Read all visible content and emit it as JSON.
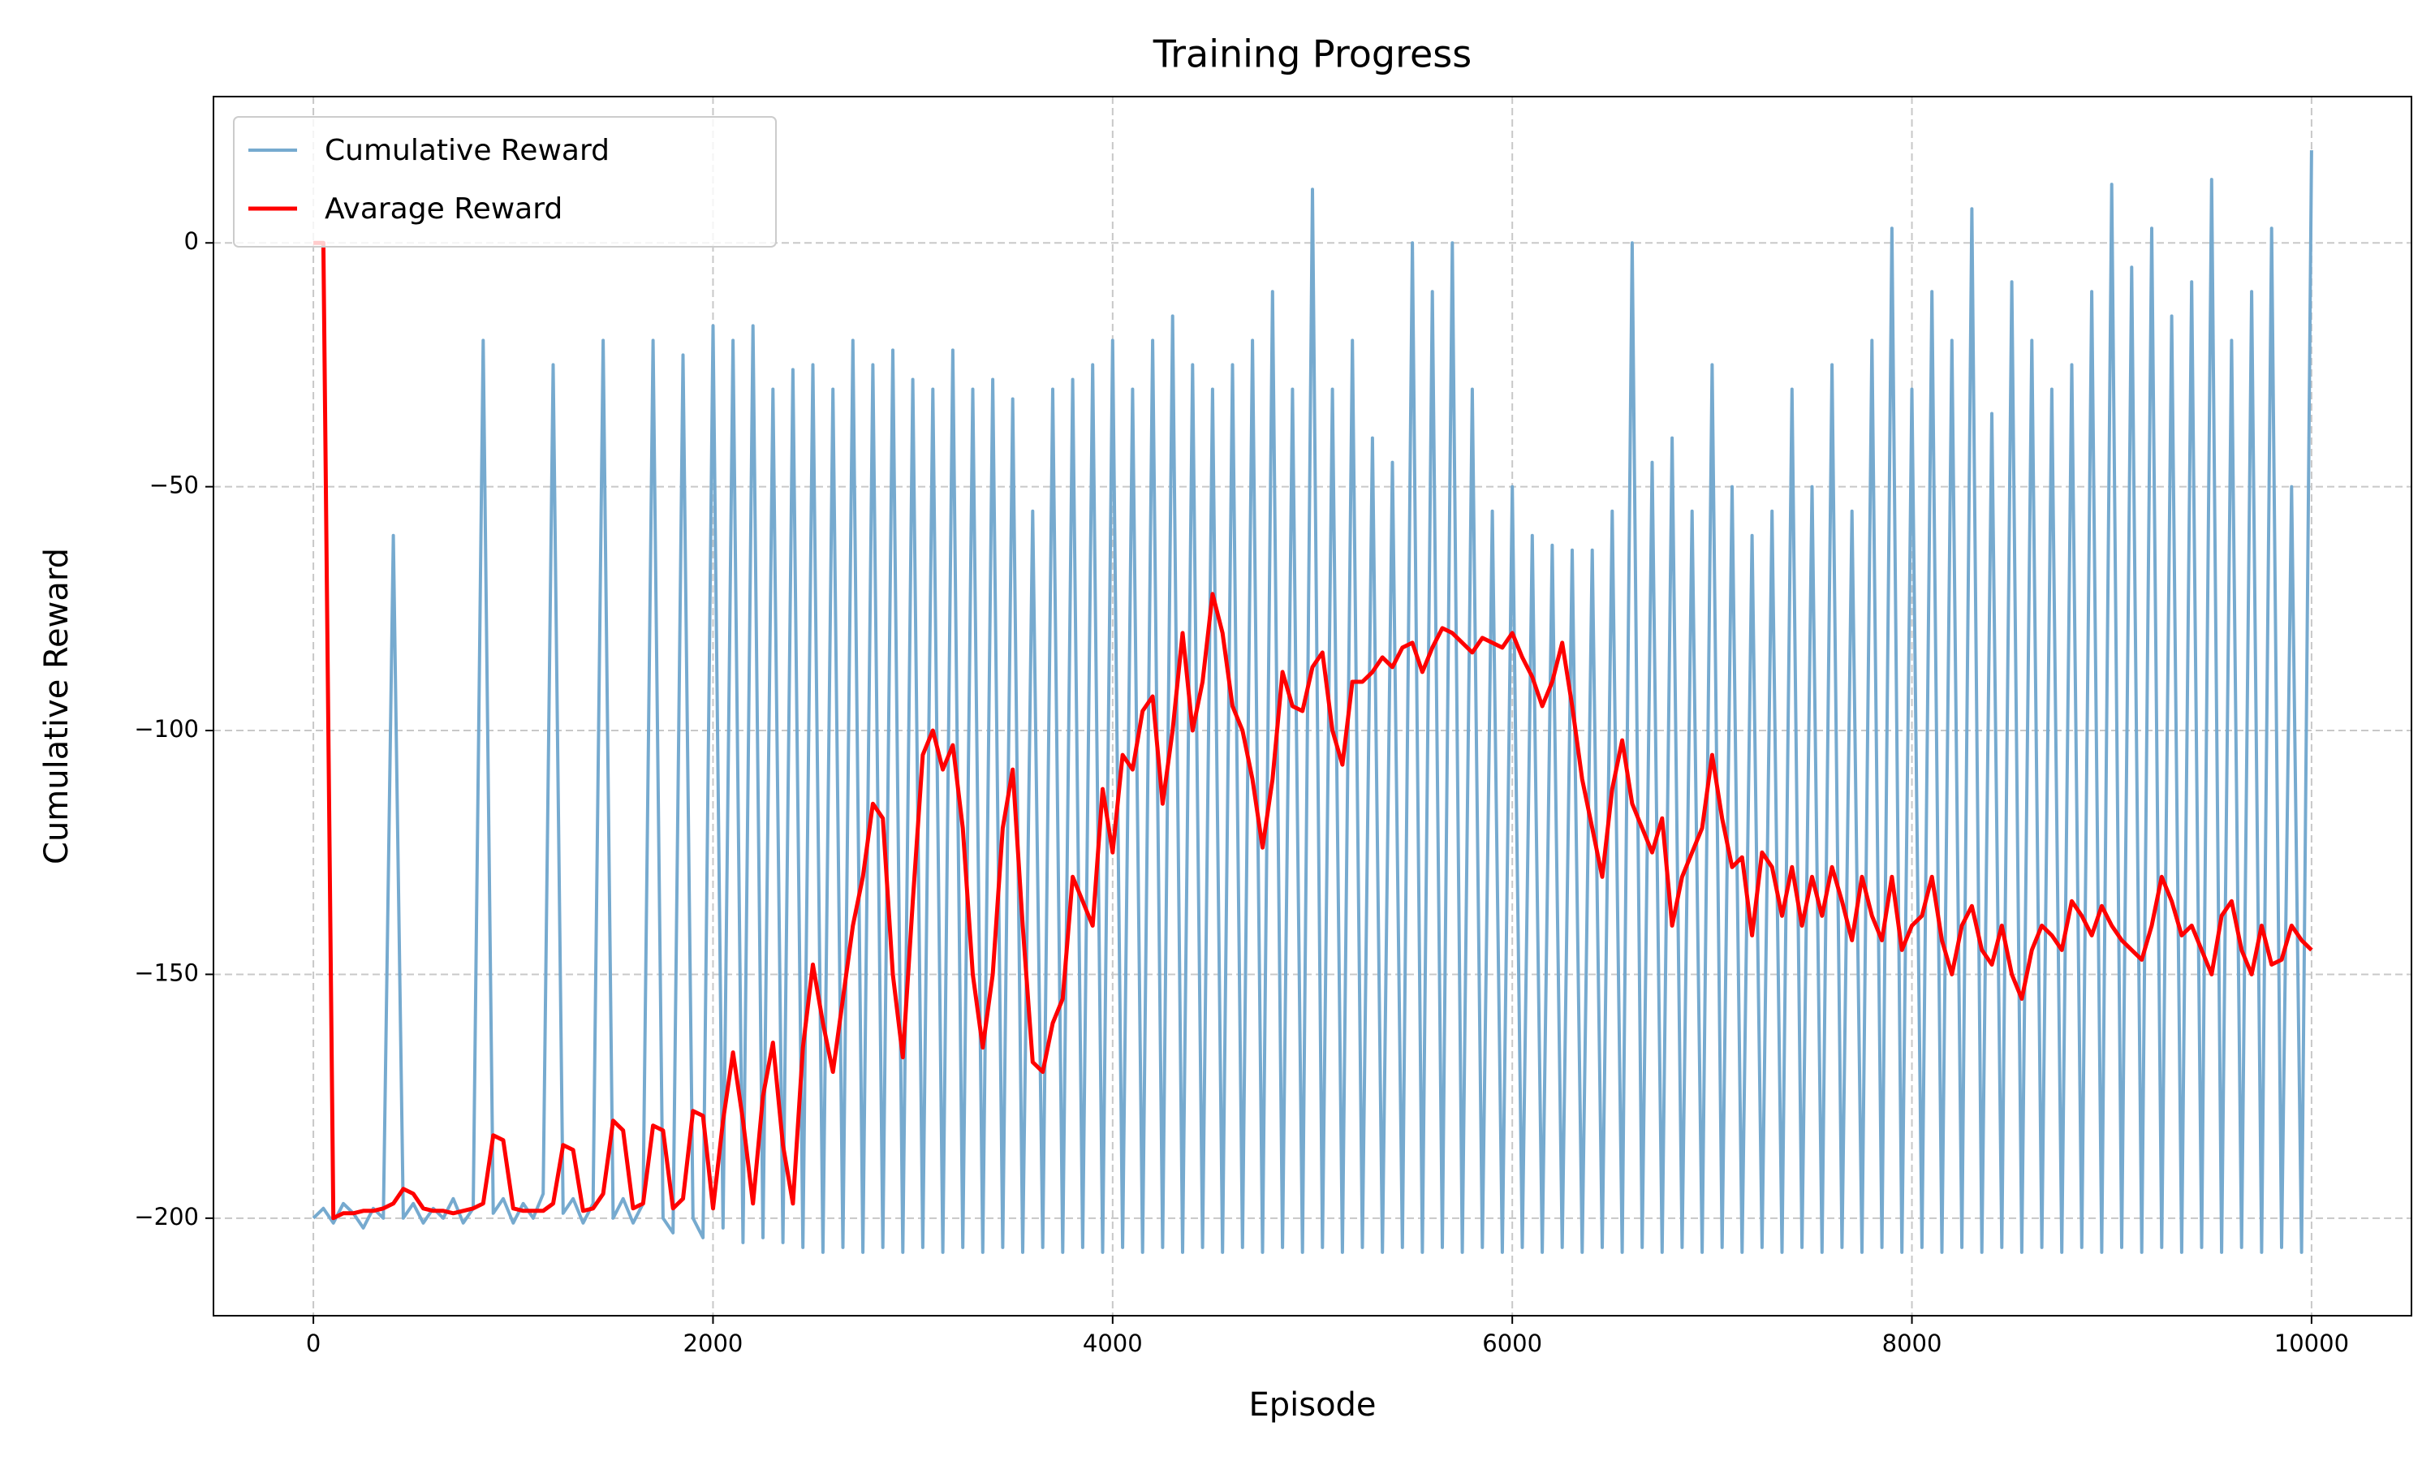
{
  "chart_data": {
    "type": "line",
    "title": "Training Progress",
    "x_label": "Episode",
    "y_label": "Cumulative Reward",
    "x": [
      0,
      50,
      100,
      150,
      200,
      250,
      300,
      350,
      400,
      450,
      500,
      550,
      600,
      650,
      700,
      750,
      800,
      850,
      900,
      950,
      1000,
      1050,
      1100,
      1150,
      1200,
      1250,
      1300,
      1350,
      1400,
      1450,
      1500,
      1550,
      1600,
      1650,
      1700,
      1750,
      1800,
      1850,
      1900,
      1950,
      2000,
      2050,
      2100,
      2150,
      2200,
      2250,
      2300,
      2350,
      2400,
      2450,
      2500,
      2550,
      2600,
      2650,
      2700,
      2750,
      2800,
      2850,
      2900,
      2950,
      3000,
      3050,
      3100,
      3150,
      3200,
      3250,
      3300,
      3350,
      3400,
      3450,
      3500,
      3550,
      3600,
      3650,
      3700,
      3750,
      3800,
      3850,
      3900,
      3950,
      4000,
      4050,
      4100,
      4150,
      4200,
      4250,
      4300,
      4350,
      4400,
      4450,
      4500,
      4550,
      4600,
      4650,
      4700,
      4750,
      4800,
      4850,
      4900,
      4950,
      5000,
      5050,
      5100,
      5150,
      5200,
      5250,
      5300,
      5350,
      5400,
      5450,
      5500,
      5550,
      5600,
      5650,
      5700,
      5750,
      5800,
      5850,
      5900,
      5950,
      6000,
      6050,
      6100,
      6150,
      6200,
      6250,
      6300,
      6350,
      6400,
      6450,
      6500,
      6550,
      6600,
      6650,
      6700,
      6750,
      6800,
      6850,
      6900,
      6950,
      7000,
      7050,
      7100,
      7150,
      7200,
      7250,
      7300,
      7350,
      7400,
      7450,
      7500,
      7550,
      7600,
      7650,
      7700,
      7750,
      7800,
      7850,
      7900,
      7950,
      8000,
      8050,
      8100,
      8150,
      8200,
      8250,
      8300,
      8350,
      8400,
      8450,
      8500,
      8550,
      8600,
      8650,
      8700,
      8750,
      8800,
      8850,
      8900,
      8950,
      9000,
      9050,
      9100,
      9150,
      9200,
      9250,
      9300,
      9350,
      9400,
      9450,
      9500,
      9550,
      9600,
      9650,
      9700,
      9750,
      9800,
      9850,
      9900,
      9950,
      10000
    ],
    "series": [
      {
        "name": "Cumulative Reward",
        "color": "#76aacf",
        "width": 4,
        "values": [
          -200,
          -198,
          -201,
          -197,
          -199,
          -202,
          -198,
          -200,
          -60,
          -200,
          -197,
          -201,
          -198,
          -200,
          -196,
          -201,
          -198,
          -20,
          -199,
          -196,
          -201,
          -197,
          -200,
          -195,
          -25,
          -199,
          -196,
          -201,
          -197,
          -20,
          -200,
          -196,
          -201,
          -197,
          -20,
          -200,
          -203,
          -23,
          -200,
          -204,
          -17,
          -202,
          -20,
          -205,
          -17,
          -204,
          -30,
          -205,
          -26,
          -206,
          -25,
          -207,
          -30,
          -206,
          -20,
          -207,
          -25,
          -206,
          -22,
          -207,
          -28,
          -206,
          -30,
          -207,
          -22,
          -206,
          -30,
          -207,
          -28,
          -206,
          -32,
          -207,
          -55,
          -206,
          -30,
          -207,
          -28,
          -206,
          -25,
          -207,
          -20,
          -206,
          -30,
          -207,
          -20,
          -206,
          -15,
          -207,
          -25,
          -206,
          -30,
          -207,
          -25,
          -206,
          -20,
          -207,
          -10,
          -206,
          -30,
          -207,
          11,
          -206,
          -30,
          -207,
          -20,
          -206,
          -40,
          -207,
          -45,
          -206,
          0,
          -207,
          -10,
          -206,
          0,
          -207,
          -30,
          -206,
          -55,
          -207,
          -50,
          -206,
          -60,
          -207,
          -62,
          -206,
          -63,
          -207,
          -63,
          -206,
          -55,
          -207,
          0,
          -206,
          -45,
          -207,
          -40,
          -206,
          -55,
          -207,
          -25,
          -206,
          -50,
          -207,
          -60,
          -206,
          -55,
          -207,
          -30,
          -206,
          -50,
          -207,
          -25,
          -206,
          -55,
          -207,
          -20,
          -206,
          3,
          -207,
          -30,
          -206,
          -10,
          -207,
          -20,
          -206,
          7,
          -207,
          -35,
          -206,
          -8,
          -207,
          -20,
          -206,
          -30,
          -207,
          -25,
          -206,
          -10,
          -207,
          12,
          -206,
          -5,
          -207,
          3,
          -206,
          -15,
          -207,
          -8,
          -206,
          13,
          -207,
          -20,
          -206,
          -10,
          -207,
          3,
          -206,
          -50,
          -207,
          19
        ]
      },
      {
        "name": "Avarage Reward",
        "color": "#ff0000",
        "width": 5,
        "values": [
          0,
          0,
          -200,
          -199,
          -199,
          -198.5,
          -198.5,
          -198,
          -197,
          -194,
          -195,
          -198,
          -198.5,
          -198.5,
          -199,
          -198.5,
          -198,
          -197,
          -183,
          -184,
          -198,
          -198.5,
          -198.5,
          -198.5,
          -197,
          -185,
          -186,
          -198.5,
          -198,
          -195,
          -180,
          -182,
          -198,
          -197,
          -181,
          -182,
          -198,
          -196,
          -178,
          -179,
          -198,
          -180,
          -166,
          -180,
          -197,
          -175,
          -164,
          -185,
          -197,
          -165,
          -148,
          -160,
          -170,
          -155,
          -140,
          -130,
          -115,
          -118,
          -150,
          -167,
          -135,
          -105,
          -100,
          -108,
          -103,
          -120,
          -150,
          -165,
          -150,
          -120,
          -108,
          -140,
          -168,
          -170,
          -160,
          -155,
          -130,
          -135,
          -140,
          -112,
          -125,
          -105,
          -108,
          -96,
          -93,
          -115,
          -100,
          -80,
          -100,
          -90,
          -72,
          -80,
          -95,
          -100,
          -110,
          -124,
          -110,
          -88,
          -95,
          -96,
          -87,
          -84,
          -100,
          -107,
          -90,
          -90,
          -88,
          -85,
          -87,
          -83,
          -82,
          -88,
          -83,
          -79,
          -80,
          -82,
          -84,
          -81,
          -82,
          -83,
          -80,
          -85,
          -89,
          -95,
          -90,
          -82,
          -95,
          -110,
          -120,
          -130,
          -112,
          -102,
          -115,
          -120,
          -125,
          -118,
          -140,
          -130,
          -125,
          -120,
          -105,
          -118,
          -128,
          -126,
          -142,
          -125,
          -128,
          -138,
          -128,
          -140,
          -130,
          -138,
          -128,
          -135,
          -143,
          -130,
          -138,
          -143,
          -130,
          -145,
          -140,
          -138,
          -130,
          -143,
          -150,
          -140,
          -136,
          -145,
          -148,
          -140,
          -150,
          -155,
          -145,
          -140,
          -142,
          -145,
          -135,
          -138,
          -142,
          -136,
          -140,
          -143,
          -145,
          -147,
          -140,
          -130,
          -135,
          -142,
          -140,
          -145,
          -150,
          -138,
          -135,
          -145,
          -150,
          -140,
          -148,
          -147,
          -140,
          -143,
          -145
        ]
      }
    ],
    "xlim": [
      -500,
      10500
    ],
    "ylim": [
      -220,
      30
    ],
    "xticks": [
      0,
      2000,
      4000,
      6000,
      8000,
      10000
    ],
    "yticks": [
      {
        "value": -200,
        "label": "−200"
      },
      {
        "value": -150,
        "label": "−150"
      },
      {
        "value": -100,
        "label": "−100"
      },
      {
        "value": -50,
        "label": "−50"
      },
      0
    ],
    "grid": true,
    "legend": "upper left"
  }
}
